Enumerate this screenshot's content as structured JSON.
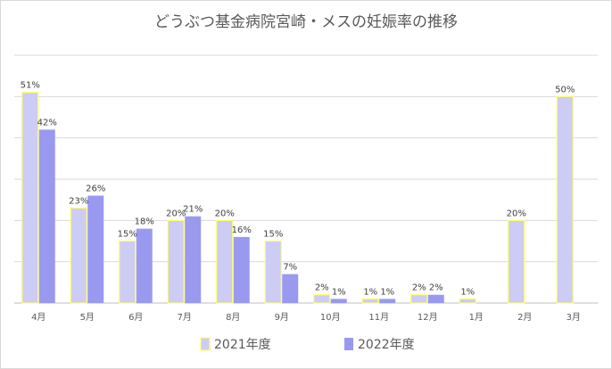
{
  "chart_data": {
    "type": "bar",
    "title": "どうぶつ基金病院宮崎・メスの妊娠率の推移",
    "categories": [
      "4月",
      "5月",
      "6月",
      "7月",
      "8月",
      "9月",
      "10月",
      "11月",
      "12月",
      "1月",
      "2月",
      "3月"
    ],
    "series": [
      {
        "name": "2021年度",
        "values": [
          51,
          23,
          15,
          20,
          20,
          15,
          2,
          1,
          2,
          1,
          20,
          50
        ],
        "labels": [
          "51%",
          "23%",
          "15%",
          "20%",
          "20%",
          "15%",
          "2%",
          "1%",
          "2%",
          "1%",
          "20%",
          "50%"
        ],
        "color": "#ccccf5",
        "border": "#ffff66"
      },
      {
        "name": "2022年度",
        "values": [
          42,
          26,
          18,
          21,
          16,
          7,
          1,
          1,
          2,
          null,
          null,
          null
        ],
        "labels": [
          "42%",
          "26%",
          "18%",
          "21%",
          "16%",
          "7%",
          "1%",
          "1%",
          "2%",
          null,
          null,
          null
        ],
        "color": "#9999f0"
      }
    ],
    "ylim": [
      0,
      60
    ],
    "grid": true,
    "legend": "bottom"
  }
}
